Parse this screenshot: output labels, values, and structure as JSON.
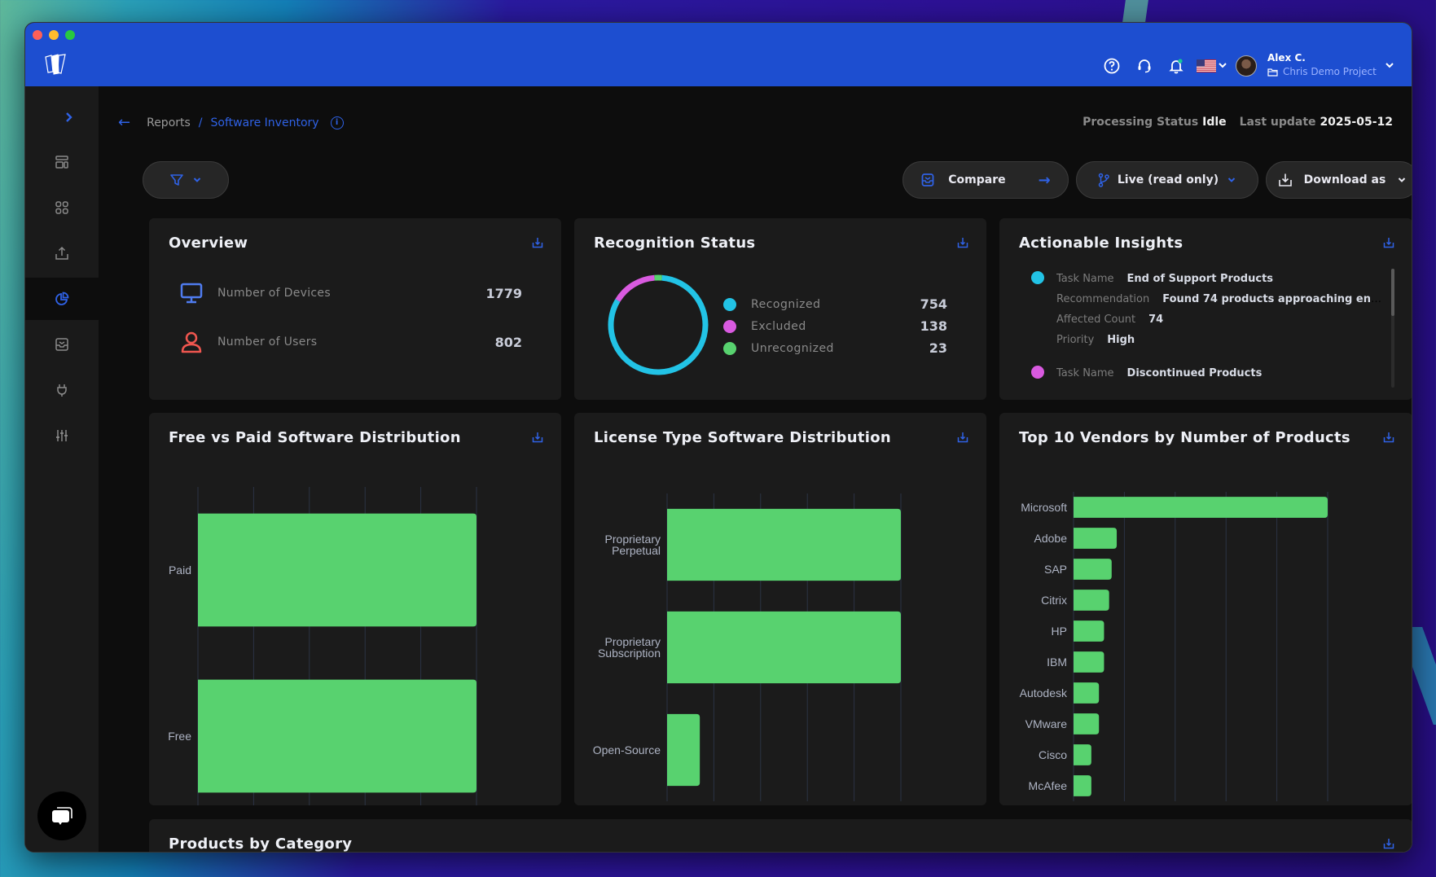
{
  "window": {
    "traffic_colors": [
      "#fe5f57",
      "#febc2e",
      "#28c840"
    ]
  },
  "header": {
    "help_icon": "question-circle-icon",
    "support_icon": "headset-icon",
    "notifications_icon": "bell-icon",
    "language": "US",
    "user": {
      "name": "Alex C.",
      "project": "Chris Demo Project"
    }
  },
  "sidebar": {
    "expand_icon": "chevron-right-icon",
    "items": [
      {
        "icon": "layout-dashboard-icon",
        "active": false
      },
      {
        "icon": "grid-apps-icon",
        "active": false
      },
      {
        "icon": "upload-icon",
        "active": false
      },
      {
        "icon": "pie-chart-icon",
        "active": true
      },
      {
        "icon": "inbox-icon",
        "active": false
      },
      {
        "icon": "plug-icon",
        "active": false
      },
      {
        "icon": "sliders-icon",
        "active": false
      }
    ]
  },
  "breadcrumb": {
    "root": "Reports",
    "separator": "/",
    "current": "Software Inventory"
  },
  "status": {
    "processing_label": "Processing Status",
    "processing_value": "Idle",
    "update_label": "Last update",
    "update_value": "2025-05-12"
  },
  "toolbar": {
    "compare_label": "Compare",
    "live_label": "Live (read only)",
    "download_label": "Download as"
  },
  "overview": {
    "title": "Overview",
    "rows": [
      {
        "label": "Number of Devices",
        "value": "1779",
        "icon": "monitor-icon",
        "color": "#4f7cf0"
      },
      {
        "label": "Number of Users",
        "value": "802",
        "icon": "user-icon",
        "color": "#f0564f"
      }
    ]
  },
  "recognition": {
    "title": "Recognition Status",
    "items": [
      {
        "label": "Recognized",
        "value": "754",
        "color": "#22c3e6"
      },
      {
        "label": "Excluded",
        "value": "138",
        "color": "#d95ae0"
      },
      {
        "label": "Unrecognized",
        "value": "23",
        "color": "#58d26f"
      }
    ]
  },
  "insights": {
    "title": "Actionable Insights",
    "items": [
      {
        "color": "#22c3e6",
        "fields": [
          {
            "key": "Task Name",
            "value": "End of Support Products"
          },
          {
            "key": "Recommendation",
            "value": "Found 74 products approaching en..."
          },
          {
            "key": "Affected Count",
            "value": "74"
          },
          {
            "key": "Priority",
            "value": "High"
          }
        ]
      },
      {
        "color": "#d95ae0",
        "fields": [
          {
            "key": "Task Name",
            "value": "Discontinued Products"
          }
        ]
      }
    ]
  },
  "products_by_category": {
    "title": "Products by Category"
  },
  "chart_data": [
    {
      "type": "bar",
      "orientation": "horizontal",
      "title": "Free vs Paid Software Distribution",
      "categories": [
        "Paid",
        "Free"
      ],
      "values": [
        100,
        100
      ],
      "xlabel": "",
      "ylabel": "",
      "xlim": [
        0,
        100
      ],
      "ticks": [
        "0%",
        "20%",
        "40%",
        "60%",
        "80%",
        "100%"
      ],
      "color": "#58d26f",
      "grid": true
    },
    {
      "type": "bar",
      "orientation": "horizontal",
      "title": "License Type Software Distribution",
      "categories": [
        [
          "Proprietary",
          "Perpetual"
        ],
        [
          "Proprietary",
          "Subscription"
        ],
        [
          "Open-Source"
        ]
      ],
      "values": [
        100,
        100,
        14
      ],
      "xlabel": "",
      "ylabel": "",
      "xlim": [
        0,
        100
      ],
      "ticks": [
        "0%",
        "20%",
        "40%",
        "60%",
        "80%",
        "100%"
      ],
      "color": "#58d26f",
      "grid": true
    },
    {
      "type": "bar",
      "orientation": "horizontal",
      "title": "Top 10 Vendors by Number of Products",
      "categories": [
        [
          "Microsoft"
        ],
        [
          "Adobe"
        ],
        [
          "SAP"
        ],
        [
          "Citrix"
        ],
        [
          "HP"
        ],
        [
          "IBM"
        ],
        [
          "Autodesk"
        ],
        [
          "VMware"
        ],
        [
          "Cisco"
        ],
        [
          "McAfee"
        ]
      ],
      "values": [
        100,
        17,
        15,
        14,
        12,
        12,
        10,
        10,
        7,
        7
      ],
      "xlabel": "",
      "ylabel": "",
      "xlim": [
        0,
        100
      ],
      "ticks": [
        "0%",
        "20%",
        "40%",
        "60%",
        "80%",
        "100%"
      ],
      "color": "#58d26f",
      "grid": true
    }
  ]
}
